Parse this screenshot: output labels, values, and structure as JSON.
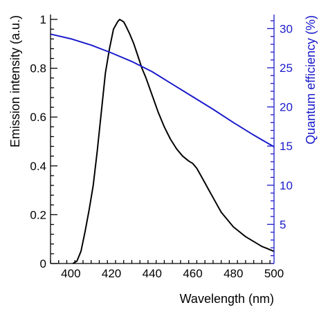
{
  "chart_data": {
    "type": "line",
    "xlabel": "Wavelength (nm)",
    "xlim": [
      390,
      500
    ],
    "x_ticks": [
      400,
      420,
      440,
      460,
      480,
      500
    ],
    "x_tick_labels": [
      "400",
      "420",
      "440",
      "460",
      "480",
      "500"
    ],
    "ylabel_left": "Emission intensity (a.u.)",
    "ylim_left": [
      0,
      1.02
    ],
    "y_ticks_left": [
      0,
      0.2,
      0.4,
      0.6,
      0.8,
      1
    ],
    "y_tick_labels_left": [
      "0",
      "0.2",
      "0.4",
      "0.6",
      "0.8",
      "1"
    ],
    "ylabel_right": "Quantum efficiency (%)",
    "ylim_right": [
      0,
      31.8
    ],
    "y_ticks_right": [
      5,
      10,
      15,
      20,
      25,
      30
    ],
    "y_tick_labels_right": [
      "5",
      "10",
      "15",
      "20",
      "25",
      "30"
    ],
    "grid": false,
    "series": [
      {
        "axis": "left",
        "color": "#000000",
        "x": [
          401,
          403,
          405,
          407,
          409,
          411,
          413,
          415,
          417,
          419,
          421,
          423,
          424,
          425,
          426,
          427,
          429,
          431,
          433,
          435,
          437,
          440,
          443,
          446,
          449,
          452,
          455,
          458,
          460,
          462,
          464,
          466,
          468,
          470,
          472,
          474,
          476,
          478,
          480,
          483,
          486,
          490,
          494,
          497,
          500
        ],
        "y": [
          0.0,
          0.01,
          0.05,
          0.13,
          0.22,
          0.32,
          0.46,
          0.62,
          0.78,
          0.88,
          0.96,
          0.99,
          1.0,
          0.995,
          0.99,
          0.975,
          0.94,
          0.9,
          0.85,
          0.8,
          0.76,
          0.69,
          0.62,
          0.56,
          0.51,
          0.47,
          0.44,
          0.42,
          0.41,
          0.39,
          0.36,
          0.33,
          0.3,
          0.27,
          0.24,
          0.21,
          0.19,
          0.17,
          0.15,
          0.13,
          0.11,
          0.09,
          0.07,
          0.06,
          0.05
        ]
      },
      {
        "axis": "right",
        "color": "#1a1acc",
        "x": [
          390,
          400,
          410,
          420,
          430,
          440,
          450,
          460,
          470,
          480,
          490,
          500
        ],
        "y": [
          29.3,
          28.7,
          27.9,
          26.9,
          25.8,
          24.5,
          22.9,
          21.3,
          19.7,
          18.0,
          16.4,
          14.9
        ]
      }
    ]
  }
}
